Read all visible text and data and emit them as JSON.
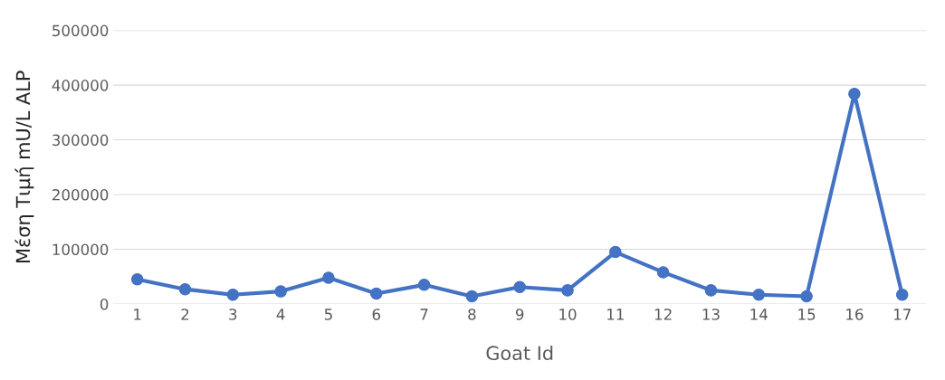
{
  "chart_data": {
    "type": "line",
    "xlabel": "Goat Id",
    "ylabel": "Μέση Τιμή mU/L ALP",
    "categories": [
      "1",
      "2",
      "3",
      "4",
      "5",
      "6",
      "7",
      "8",
      "9",
      "10",
      "11",
      "12",
      "13",
      "14",
      "15",
      "16",
      "17"
    ],
    "series": [
      {
        "color": "#4472c4",
        "values": [
          45000,
          27000,
          17000,
          23000,
          48000,
          19000,
          35000,
          14000,
          31000,
          25000,
          95000,
          58000,
          25000,
          17000,
          14000,
          384000,
          17000
        ]
      }
    ],
    "ylim": [
      0,
      500000
    ],
    "yticks": [
      0,
      100000,
      200000,
      300000,
      400000,
      500000
    ],
    "grid": "y",
    "marker": "circle",
    "line_style": "solid",
    "legend": false
  }
}
